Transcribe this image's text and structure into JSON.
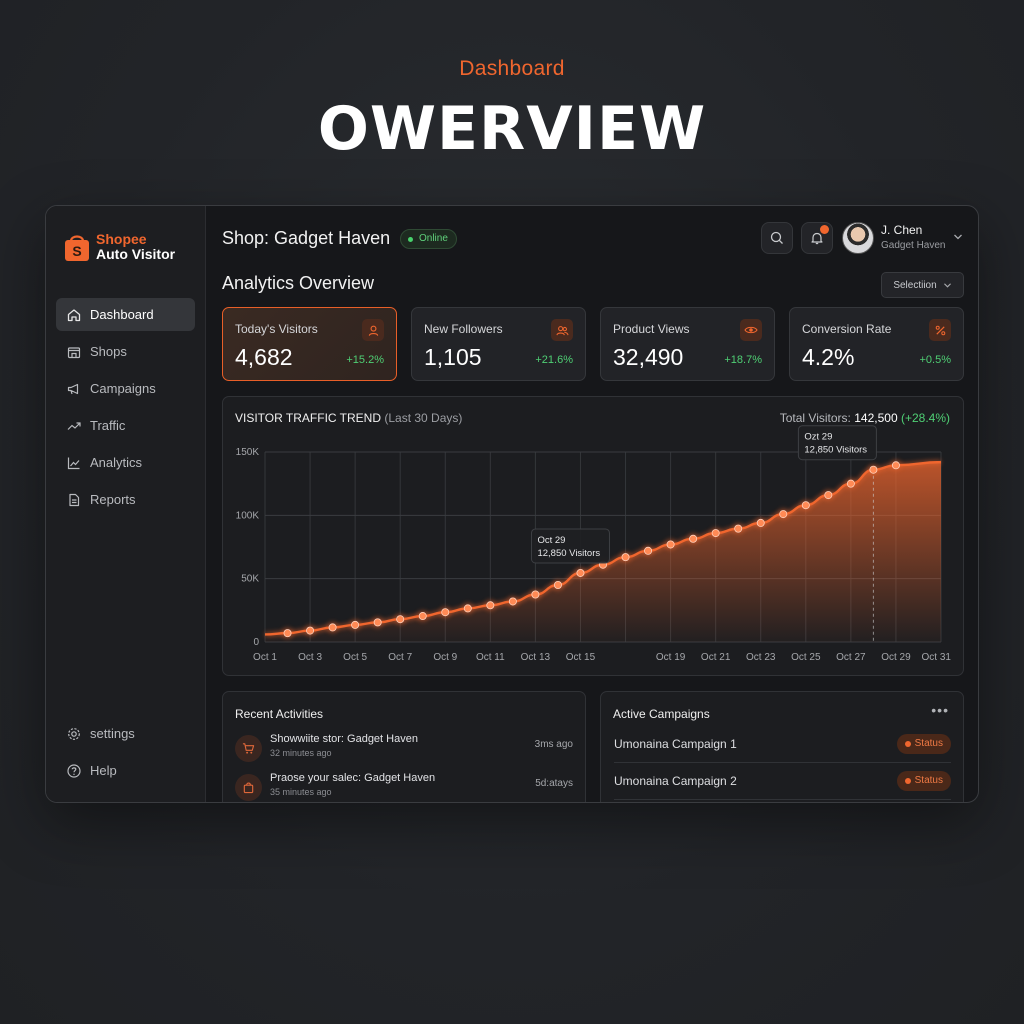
{
  "hero": {
    "subtitle": "Dashboard",
    "title": "OWERVIEW"
  },
  "brand": {
    "line1": "Shopee",
    "line2": "Auto Visitor",
    "accent": "#f0662e"
  },
  "sidebar": {
    "items": [
      {
        "label": "Dashboard",
        "icon": "home-icon",
        "active": true
      },
      {
        "label": "Shops",
        "icon": "store-icon"
      },
      {
        "label": "Campaigns",
        "icon": "megaphone-icon"
      },
      {
        "label": "Traffic",
        "icon": "trend-icon"
      },
      {
        "label": "Analytics",
        "icon": "chart-icon"
      },
      {
        "label": "Reports",
        "icon": "document-icon"
      }
    ],
    "bottom": [
      {
        "label": "settings",
        "icon": "gear-icon"
      },
      {
        "label": "Help",
        "icon": "help-icon"
      }
    ]
  },
  "header": {
    "shop_title": "Shop: Gadget Haven",
    "status": "Online",
    "user": {
      "name": "J. Chen",
      "shop": "Gadget Haven"
    }
  },
  "analytics": {
    "title": "Analytics Overview",
    "select_label": "Selectiion",
    "cards": [
      {
        "label": "Today's Visitors",
        "value": "4,682",
        "change": "+15.2%",
        "icon": "user-icon"
      },
      {
        "label": "New Followers",
        "value": "1,105",
        "change": "+21.6%",
        "icon": "users-icon"
      },
      {
        "label": "Product Views",
        "value": "32,490",
        "change": "+18.7%",
        "icon": "eye-icon"
      },
      {
        "label": "Conversion Rate",
        "value": "4.2%",
        "change": "+0.5%",
        "icon": "percent-icon"
      }
    ]
  },
  "chart_header": {
    "title": "VISITOR TRAFFIC TREND",
    "title_sub": "(Last 30 Days)",
    "total_label": "Total Visitors:",
    "total_value": "142,500",
    "total_change": "(+28.4%)"
  },
  "chart_data": {
    "type": "area",
    "x": [
      "Oct 1",
      "Oct 2",
      "Oct 3",
      "Oct 4",
      "Oct 5",
      "Oct 6",
      "Oct 7",
      "Oct 8",
      "Oct 9",
      "Oct 10",
      "Oct 11",
      "Oct 12",
      "Oct 13",
      "Oct 14",
      "Oct 15",
      "Oct 16",
      "Oct 17",
      "Oct 18",
      "Oct 19",
      "Oct 20",
      "Oct 21",
      "Oct 22",
      "Oct 23",
      "Oct 24",
      "Oct 25",
      "Oct 26",
      "Oct 27",
      "Oct 28",
      "Oct 29",
      "Oct 30",
      "Oct 31"
    ],
    "tick_labels": [
      "Oct 1",
      "Oct 3",
      "Oct 5",
      "Oct 7",
      "Oct 9",
      "Oct 11",
      "Oct 13",
      "Oct 15",
      "Oct 19",
      "Oct 21",
      "Oct 23",
      "Oct 25",
      "Oct 27",
      "Oct 29",
      "Oct 31"
    ],
    "y_ticks": [
      "0",
      "50K",
      "100K",
      "150K"
    ],
    "ylim": [
      0,
      150000
    ],
    "points": [
      {
        "x": "Oct 2",
        "y": 7000
      },
      {
        "x": "Oct 3",
        "y": 9000
      },
      {
        "x": "Oct 4",
        "y": 11500
      },
      {
        "x": "Oct 5",
        "y": 13500
      },
      {
        "x": "Oct 6",
        "y": 15500
      },
      {
        "x": "Oct 7",
        "y": 18000
      },
      {
        "x": "Oct 8",
        "y": 20500
      },
      {
        "x": "Oct 9",
        "y": 23500
      },
      {
        "x": "Oct 10",
        "y": 26500
      },
      {
        "x": "Oct 11",
        "y": 29000
      },
      {
        "x": "Oct 12",
        "y": 32000
      },
      {
        "x": "Oct 13",
        "y": 37500
      },
      {
        "x": "Oct 14",
        "y": 45000
      },
      {
        "x": "Oct 15",
        "y": 54500
      },
      {
        "x": "Oct 16",
        "y": 61000
      },
      {
        "x": "Oct 17",
        "y": 67000
      },
      {
        "x": "Oct 18",
        "y": 72000
      },
      {
        "x": "Oct 19",
        "y": 77000
      },
      {
        "x": "Oct 20",
        "y": 81500
      },
      {
        "x": "Oct 21",
        "y": 86000
      },
      {
        "x": "Oct 22",
        "y": 89500
      },
      {
        "x": "Oct 23",
        "y": 94000
      },
      {
        "x": "Oct 24",
        "y": 101000
      },
      {
        "x": "Oct 25",
        "y": 108000
      },
      {
        "x": "Oct 26",
        "y": 116000
      },
      {
        "x": "Oct 27",
        "y": 125000
      },
      {
        "x": "Oct 28",
        "y": 136000
      },
      {
        "x": "Oct 29",
        "y": 139500
      }
    ],
    "line_start": {
      "x": "Oct 1",
      "y": 6000
    },
    "line_end": {
      "x": "Oct 31",
      "y": 142000
    },
    "annotations": [
      {
        "x": "Oct 15",
        "line1": "Oct 29",
        "line2": "12,850 Visitors"
      },
      {
        "x": "Oct 28",
        "line1": "Ozt 29",
        "line2": "12,850 Visitors",
        "guide": true
      }
    ],
    "grid": true,
    "color": "#f0662e"
  },
  "activities": {
    "title": "Recent Activities",
    "items": [
      {
        "text": "Showwiite stor: Gadget Haven",
        "time": "32 minutes ago",
        "right": "3ms ago",
        "icon": "cart-icon"
      },
      {
        "text": "Praose your salec: Gadget Haven",
        "time": "35 minutes ago",
        "right": "5d:atays",
        "icon": "bag-icon"
      }
    ]
  },
  "campaigns": {
    "title": "Active Campaigns",
    "more": "•••",
    "items": [
      {
        "name": "Umonaina Campaign 1",
        "status": "Status"
      },
      {
        "name": "Umonaina Campaign 2",
        "status": "Status"
      }
    ]
  }
}
